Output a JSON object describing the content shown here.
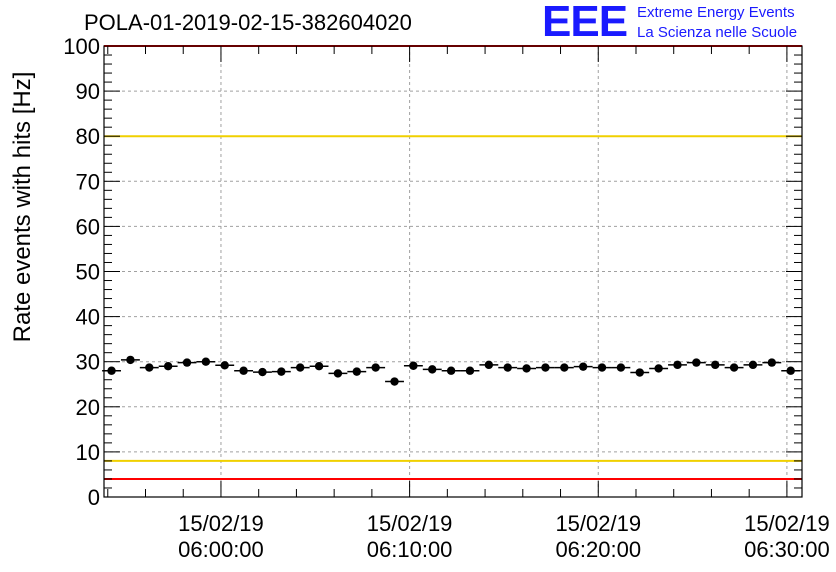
{
  "title": "POLA-01-2019-02-15-382604020",
  "logo": {
    "mark": "EEE",
    "line1": "Extreme Energy Events",
    "line2": "La Scienza nelle Scuole"
  },
  "colors": {
    "points": "#000000",
    "limit_red": "#ff0000",
    "limit_yellow": "#f0d000",
    "grid": "#a0a0a0",
    "logo": "#1a1aff"
  },
  "chart_data": {
    "type": "scatter",
    "title": "POLA-01-2019-02-15-382604020",
    "xlabel": "",
    "ylabel": "Rate events with hits [Hz]",
    "ylim": [
      0,
      100
    ],
    "xlim_minutes": [
      -6.2,
      30.8
    ],
    "y_ticks": [
      "0",
      "10",
      "20",
      "30",
      "40",
      "50",
      "60",
      "70",
      "80",
      "90",
      "100"
    ],
    "x_ticks": [
      {
        "minute": 0,
        "date": "15/02/19",
        "time": "06:00:00"
      },
      {
        "minute": 10,
        "date": "15/02/19",
        "time": "06:10:00"
      },
      {
        "minute": 20,
        "date": "15/02/19",
        "time": "06:20:00"
      },
      {
        "minute": 30,
        "date": "15/02/19",
        "time": "06:30:00"
      }
    ],
    "grid": true,
    "reference_lines": [
      {
        "y": 100,
        "color": "red"
      },
      {
        "y": 80,
        "color": "yellow"
      },
      {
        "y": 8,
        "color": "yellow"
      },
      {
        "y": 4,
        "color": "red"
      }
    ],
    "series": [
      {
        "x_minutes": [
          -5.8,
          -4.8,
          -3.8,
          -2.8,
          -1.8,
          -0.8,
          0.2,
          1.2,
          2.2,
          3.2,
          4.2,
          5.2,
          6.2,
          7.2,
          8.2,
          9.2,
          10.2,
          11.2,
          12.2,
          13.2,
          14.2,
          15.2,
          16.2,
          17.2,
          18.2,
          19.2,
          20.2,
          21.2,
          22.2,
          23.2,
          24.2,
          25.2,
          26.2,
          27.2,
          28.2,
          29.2,
          30.2
        ],
        "values": [
          28.0,
          30.4,
          28.7,
          29.0,
          29.8,
          30.0,
          29.2,
          28.0,
          27.7,
          27.8,
          28.7,
          29.0,
          27.4,
          27.8,
          28.7,
          25.6,
          29.1,
          28.3,
          28.0,
          28.0,
          29.3,
          28.7,
          28.5,
          28.7,
          28.7,
          28.9,
          28.7,
          28.7,
          27.6,
          28.5,
          29.3,
          29.8,
          29.3,
          28.7,
          29.3,
          29.8,
          28.0
        ]
      }
    ]
  }
}
